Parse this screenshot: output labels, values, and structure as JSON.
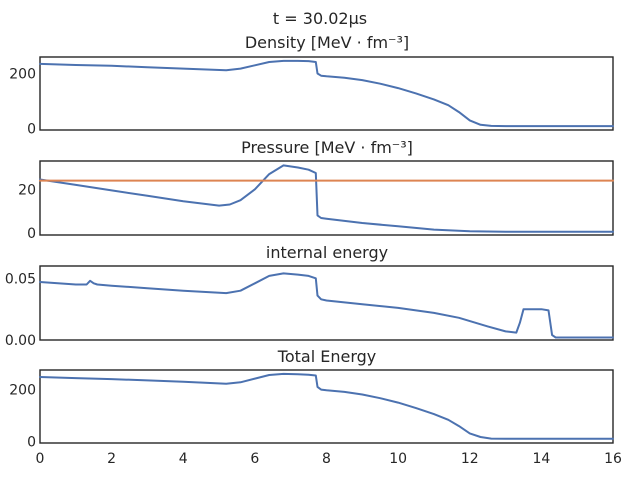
{
  "figure": {
    "suptitle": "t = 30.02μs"
  },
  "colors": {
    "blue": "#4c72b0",
    "orange": "#dd8452"
  },
  "chart_data": [
    {
      "type": "line",
      "title": "Density [MeV · fm⁻³]",
      "xlim": [
        0,
        16
      ],
      "ylim": [
        -5,
        260
      ],
      "yticks": [
        0,
        200
      ],
      "ytick_labels": [
        "0",
        "200"
      ],
      "show_xticks": false,
      "grid": false,
      "series": [
        {
          "color": "#4c72b0",
          "x": [
            0,
            1,
            2,
            3,
            4,
            5.2,
            5.6,
            6,
            6.4,
            6.8,
            7.2,
            7.5,
            7.7,
            7.75,
            7.85,
            8.0,
            8.5,
            9,
            9.5,
            10,
            10.5,
            11,
            11.4,
            11.7,
            12.0,
            12.3,
            12.6,
            13,
            14,
            15,
            16
          ],
          "y": [
            235,
            231,
            228,
            223,
            218,
            212,
            218,
            230,
            242,
            246,
            246,
            245,
            242,
            200,
            192,
            190,
            185,
            176,
            163,
            147,
            128,
            106,
            85,
            60,
            30,
            14,
            10,
            9,
            9,
            9,
            9
          ]
        }
      ]
    },
    {
      "type": "line",
      "title": "Pressure [MeV · fm⁻³]",
      "xlim": [
        0,
        16
      ],
      "ylim": [
        -1,
        33
      ],
      "yticks": [
        0,
        20
      ],
      "ytick_labels": [
        "0",
        "20"
      ],
      "show_xticks": false,
      "grid": false,
      "series": [
        {
          "color": "#4c72b0",
          "x": [
            0,
            1,
            2,
            3,
            4,
            5.0,
            5.3,
            5.6,
            6,
            6.4,
            6.8,
            7.2,
            7.5,
            7.7,
            7.75,
            7.85,
            8.0,
            8.5,
            9,
            10,
            11,
            12,
            13,
            14,
            15,
            16
          ],
          "y": [
            24.5,
            22,
            19.5,
            17,
            14.5,
            12.5,
            13,
            15,
            20,
            27,
            31,
            30,
            29,
            27.5,
            8,
            6.8,
            6.5,
            5.5,
            4.5,
            3,
            1.5,
            0.7,
            0.5,
            0.5,
            0.5,
            0.5
          ]
        },
        {
          "color": "#dd8452",
          "x": [
            0,
            16
          ],
          "y": [
            24,
            24
          ]
        }
      ]
    },
    {
      "type": "line",
      "title": "internal energy",
      "xlim": [
        0,
        16
      ],
      "ylim": [
        0,
        0.06
      ],
      "yticks": [
        0,
        0.05
      ],
      "ytick_labels": [
        "0.00",
        "0.05"
      ],
      "show_xticks": false,
      "grid": false,
      "series": [
        {
          "color": "#4c72b0",
          "x": [
            0,
            0.5,
            1.0,
            1.3,
            1.4,
            1.5,
            1.6,
            2,
            3,
            4,
            5.2,
            5.6,
            6,
            6.4,
            6.8,
            7.2,
            7.5,
            7.7,
            7.75,
            7.85,
            8.0,
            9,
            10,
            11,
            11.7,
            12.5,
            13.0,
            13.3,
            13.4,
            13.5,
            13.6,
            14.0,
            14.2,
            14.3,
            14.4,
            15,
            16
          ],
          "y": [
            0.047,
            0.046,
            0.045,
            0.045,
            0.048,
            0.046,
            0.045,
            0.044,
            0.042,
            0.04,
            0.038,
            0.04,
            0.046,
            0.052,
            0.054,
            0.053,
            0.052,
            0.05,
            0.036,
            0.033,
            0.032,
            0.029,
            0.026,
            0.022,
            0.018,
            0.011,
            0.007,
            0.006,
            0.014,
            0.025,
            0.025,
            0.025,
            0.024,
            0.004,
            0.002,
            0.002,
            0.002
          ]
        }
      ]
    },
    {
      "type": "line",
      "title": "Total Energy",
      "xlim": [
        0,
        16
      ],
      "ylim": [
        -5,
        275
      ],
      "yticks": [
        0,
        200
      ],
      "ytick_labels": [
        "0",
        "200"
      ],
      "xticks": [
        0,
        2,
        4,
        6,
        8,
        10,
        12,
        14,
        16
      ],
      "xtick_labels": [
        "0",
        "2",
        "4",
        "6",
        "8",
        "10",
        "12",
        "14",
        "16"
      ],
      "show_xticks": true,
      "grid": false,
      "series": [
        {
          "color": "#4c72b0",
          "x": [
            0,
            1,
            2,
            3,
            4,
            5.2,
            5.6,
            6,
            6.4,
            6.8,
            7.2,
            7.5,
            7.7,
            7.75,
            7.85,
            8.0,
            8.5,
            9,
            9.5,
            10,
            10.5,
            11,
            11.4,
            11.7,
            12.0,
            12.3,
            12.6,
            13,
            14,
            15,
            16
          ],
          "y": [
            248,
            244,
            240,
            235,
            230,
            222,
            228,
            242,
            256,
            260,
            259,
            257,
            254,
            210,
            200,
            197,
            191,
            181,
            167,
            150,
            129,
            106,
            84,
            60,
            32,
            18,
            12,
            11,
            11,
            11,
            11
          ]
        }
      ]
    }
  ]
}
